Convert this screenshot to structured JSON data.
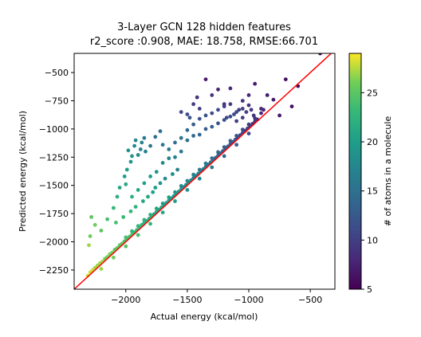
{
  "chart_data": {
    "type": "scatter",
    "title": "3-Layer GCN 128 hidden features",
    "subtitle": "r2_score :0.908, MAE: 18.758, RMSE:66.701",
    "xlabel": "Actual energy (kcal/mol)",
    "ylabel": "Predicted energy (kcal/mol)",
    "xlim": [
      -2420,
      -300
    ],
    "ylim": [
      -2420,
      -330
    ],
    "x_ticks": [
      -2000,
      -1500,
      -1000,
      -500
    ],
    "y_ticks": [
      -500,
      -750,
      -1000,
      -1250,
      -1500,
      -1750,
      -2000,
      -2250
    ],
    "x_tick_labels": [
      "−2000",
      "−1500",
      "−1000",
      "−500"
    ],
    "y_tick_labels": [
      "−500",
      "−750",
      "−1000",
      "−1250",
      "−1500",
      "−1750",
      "−2000",
      "−2250"
    ],
    "grid": false,
    "colormap": "viridis",
    "colorbar": {
      "label": "# of atoms in a molecule",
      "range": [
        5,
        29
      ],
      "ticks": [
        5,
        10,
        15,
        20,
        25
      ],
      "tick_labels": [
        "5",
        "10",
        "15",
        "20",
        "25"
      ]
    },
    "reference_line": {
      "from": [
        -2420,
        -2420
      ],
      "to": [
        -300,
        -300
      ],
      "color": "#ff0000"
    },
    "series": [
      {
        "points": [
          [
            -2310,
            -2300,
            28
          ],
          [
            -2290,
            -2270,
            28
          ],
          [
            -2270,
            -2250,
            28
          ],
          [
            -2250,
            -2230,
            27
          ],
          [
            -2230,
            -2210,
            27
          ],
          [
            -2210,
            -2190,
            27
          ],
          [
            -2190,
            -2175,
            27
          ],
          [
            -2170,
            -2150,
            26
          ],
          [
            -2150,
            -2135,
            26
          ],
          [
            -2130,
            -2110,
            26
          ],
          [
            -2110,
            -2095,
            26
          ],
          [
            -2090,
            -2070,
            25
          ],
          [
            -2070,
            -2055,
            25
          ],
          [
            -2050,
            -2030,
            25
          ],
          [
            -2030,
            -2015,
            25
          ],
          [
            -2010,
            -1995,
            24
          ],
          [
            -1990,
            -1975,
            24
          ],
          [
            -1970,
            -1955,
            24
          ],
          [
            -1950,
            -1935,
            24
          ],
          [
            -1930,
            -1915,
            23
          ],
          [
            -1910,
            -1895,
            23
          ],
          [
            -1890,
            -1870,
            23
          ],
          [
            -1870,
            -1850,
            23
          ],
          [
            -1850,
            -1830,
            22
          ],
          [
            -1830,
            -1815,
            22
          ],
          [
            -1810,
            -1795,
            22
          ],
          [
            -1790,
            -1775,
            22
          ],
          [
            -1770,
            -1755,
            21
          ],
          [
            -1750,
            -1735,
            21
          ],
          [
            -1730,
            -1715,
            21
          ],
          [
            -1710,
            -1695,
            21
          ],
          [
            -1690,
            -1675,
            20
          ],
          [
            -1670,
            -1655,
            20
          ],
          [
            -1650,
            -1635,
            20
          ],
          [
            -1630,
            -1615,
            20
          ],
          [
            -1610,
            -1595,
            19
          ],
          [
            -1590,
            -1575,
            19
          ],
          [
            -1570,
            -1555,
            19
          ],
          [
            -1550,
            -1535,
            19
          ],
          [
            -1530,
            -1515,
            18
          ],
          [
            -1510,
            -1495,
            18
          ],
          [
            -1490,
            -1475,
            18
          ],
          [
            -1470,
            -1455,
            18
          ],
          [
            -1450,
            -1435,
            17
          ],
          [
            -1430,
            -1415,
            17
          ],
          [
            -1410,
            -1395,
            17
          ],
          [
            -1390,
            -1375,
            16
          ],
          [
            -1370,
            -1355,
            16
          ],
          [
            -1350,
            -1335,
            16
          ],
          [
            -1330,
            -1315,
            15
          ],
          [
            -1310,
            -1295,
            15
          ],
          [
            -1290,
            -1275,
            15
          ],
          [
            -1270,
            -1255,
            14
          ],
          [
            -1250,
            -1235,
            14
          ],
          [
            -1230,
            -1215,
            14
          ],
          [
            -1210,
            -1195,
            13
          ],
          [
            -1190,
            -1175,
            13
          ],
          [
            -1170,
            -1155,
            13
          ],
          [
            -1150,
            -1135,
            12
          ],
          [
            -1130,
            -1115,
            12
          ],
          [
            -1110,
            -1095,
            12
          ],
          [
            -1090,
            -1075,
            11
          ],
          [
            -1070,
            -1055,
            11
          ],
          [
            -1050,
            -1035,
            11
          ],
          [
            -1030,
            -1015,
            10
          ],
          [
            -1010,
            -995,
            10
          ],
          [
            -990,
            -975,
            10
          ],
          [
            -970,
            -955,
            9
          ],
          [
            -950,
            -935,
            9
          ],
          [
            -930,
            -915,
            9
          ],
          [
            -2000,
            -1960,
            24
          ],
          [
            -1950,
            -1905,
            23
          ],
          [
            -1900,
            -1860,
            23
          ],
          [
            -1850,
            -1805,
            22
          ],
          [
            -1800,
            -1760,
            22
          ],
          [
            -1750,
            -1705,
            21
          ],
          [
            -1700,
            -1660,
            20
          ],
          [
            -1650,
            -1605,
            20
          ],
          [
            -1600,
            -1560,
            19
          ],
          [
            -1550,
            -1505,
            18
          ],
          [
            -1500,
            -1460,
            18
          ],
          [
            -1450,
            -1405,
            17
          ],
          [
            -1400,
            -1360,
            16
          ],
          [
            -1350,
            -1305,
            16
          ],
          [
            -1300,
            -1260,
            15
          ],
          [
            -1250,
            -1205,
            14
          ],
          [
            -1200,
            -1160,
            13
          ],
          [
            -1150,
            -1105,
            13
          ],
          [
            -1100,
            -1060,
            12
          ],
          [
            -1050,
            -1005,
            11
          ],
          [
            -1000,
            -960,
            10
          ],
          [
            -950,
            -905,
            9
          ],
          [
            -900,
            -860,
            8
          ],
          [
            -880,
            -830,
            8
          ],
          [
            -2200,
            -2240,
            27
          ],
          [
            -2100,
            -2140,
            26
          ],
          [
            -2000,
            -2040,
            25
          ],
          [
            -1900,
            -1940,
            24
          ],
          [
            -1800,
            -1840,
            23
          ],
          [
            -1700,
            -1740,
            21
          ],
          [
            -1600,
            -1640,
            20
          ],
          [
            -1500,
            -1540,
            19
          ],
          [
            -1400,
            -1440,
            17
          ],
          [
            -1300,
            -1340,
            16
          ],
          [
            -1200,
            -1240,
            14
          ],
          [
            -1100,
            -1140,
            13
          ],
          [
            -1000,
            -1040,
            11
          ],
          [
            -2300,
            -2030,
            27
          ],
          [
            -2290,
            -1950,
            26
          ],
          [
            -2280,
            -1780,
            25
          ],
          [
            -2250,
            -1850,
            26
          ],
          [
            -2200,
            -1900,
            25
          ],
          [
            -2150,
            -1800,
            24
          ],
          [
            -2100,
            -1700,
            23
          ],
          [
            -2070,
            -1600,
            22
          ],
          [
            -2050,
            -1520,
            21
          ],
          [
            -2000,
            -1490,
            21
          ],
          [
            -2010,
            -1420,
            20
          ],
          [
            -1990,
            -1360,
            20
          ],
          [
            -1980,
            -1190,
            19
          ],
          [
            -1960,
            -1290,
            19
          ],
          [
            -1950,
            -1240,
            19
          ],
          [
            -1930,
            -1150,
            18
          ],
          [
            -1920,
            -1100,
            18
          ],
          [
            -1900,
            -1230,
            18
          ],
          [
            -1880,
            -1180,
            17
          ],
          [
            -1870,
            -1120,
            17
          ],
          [
            -1850,
            -1080,
            16
          ],
          [
            -1840,
            -1200,
            17
          ],
          [
            -1800,
            -1150,
            16
          ],
          [
            -1760,
            -1070,
            15
          ],
          [
            -1720,
            -1020,
            15
          ],
          [
            -1700,
            -1140,
            16
          ],
          [
            -1650,
            -1180,
            16
          ],
          [
            -1600,
            -1120,
            15
          ],
          [
            -1550,
            -1080,
            15
          ],
          [
            -1500,
            -1010,
            14
          ],
          [
            -1450,
            -960,
            13
          ],
          [
            -1400,
            -910,
            12
          ],
          [
            -1350,
            -880,
            12
          ],
          [
            -1300,
            -860,
            11
          ],
          [
            -1250,
            -830,
            11
          ],
          [
            -1200,
            -800,
            10
          ],
          [
            -1150,
            -780,
            10
          ],
          [
            -1400,
            -1050,
            14
          ],
          [
            -1350,
            -1000,
            13
          ],
          [
            -1300,
            -980,
            13
          ],
          [
            -1250,
            -950,
            12
          ],
          [
            -1200,
            -920,
            12
          ],
          [
            -1150,
            -890,
            11
          ],
          [
            -1100,
            -850,
            11
          ],
          [
            -1050,
            -820,
            10
          ],
          [
            -1000,
            -790,
            9
          ],
          [
            -1500,
            -1100,
            15
          ],
          [
            -1450,
            -1060,
            14
          ],
          [
            -1600,
            -1250,
            17
          ],
          [
            -1550,
            -1200,
            16
          ],
          [
            -1700,
            -1300,
            18
          ],
          [
            -1650,
            -1260,
            17
          ],
          [
            -1750,
            -1380,
            19
          ],
          [
            -1800,
            -1420,
            20
          ],
          [
            -1850,
            -1480,
            20
          ],
          [
            -1900,
            -1540,
            21
          ],
          [
            -1950,
            -1600,
            22
          ],
          [
            -1580,
            -1360,
            17
          ],
          [
            -1620,
            -1400,
            18
          ],
          [
            -1680,
            -1440,
            18
          ],
          [
            -1720,
            -1480,
            19
          ],
          [
            -1760,
            -1520,
            20
          ],
          [
            -1780,
            -1560,
            20
          ],
          [
            -1820,
            -1600,
            21
          ],
          [
            -1860,
            -1640,
            21
          ],
          [
            -1920,
            -1690,
            22
          ],
          [
            -1960,
            -1730,
            23
          ],
          [
            -2020,
            -1780,
            23
          ],
          [
            -2080,
            -1830,
            24
          ],
          [
            -1350,
            -560,
            7
          ],
          [
            -1250,
            -650,
            8
          ],
          [
            -1150,
            -640,
            8
          ],
          [
            -1050,
            -750,
            9
          ],
          [
            -1000,
            -700,
            8
          ],
          [
            -950,
            -600,
            7
          ],
          [
            -900,
            -820,
            8
          ],
          [
            -850,
            -700,
            7
          ],
          [
            -800,
            -740,
            7
          ],
          [
            -750,
            -880,
            7
          ],
          [
            -700,
            -560,
            6
          ],
          [
            -650,
            -800,
            6
          ],
          [
            -600,
            -620,
            6
          ],
          [
            -420,
            -330,
            5
          ],
          [
            -1100,
            -930,
            10
          ],
          [
            -1050,
            -900,
            10
          ],
          [
            -1300,
            -700,
            9
          ],
          [
            -1200,
            -780,
            9
          ],
          [
            -1450,
            -780,
            10
          ],
          [
            -1550,
            -850,
            11
          ],
          [
            -1400,
            -820,
            10
          ],
          [
            -1500,
            -870,
            11
          ],
          [
            -1420,
            -720,
            9
          ],
          [
            -1480,
            -900,
            12
          ],
          [
            -1180,
            -900,
            11
          ],
          [
            -1120,
            -870,
            11
          ],
          [
            -1080,
            -830,
            10
          ],
          [
            -1020,
            -850,
            10
          ],
          [
            -980,
            -830,
            9
          ],
          [
            -960,
            -880,
            9
          ]
        ]
      }
    ]
  }
}
